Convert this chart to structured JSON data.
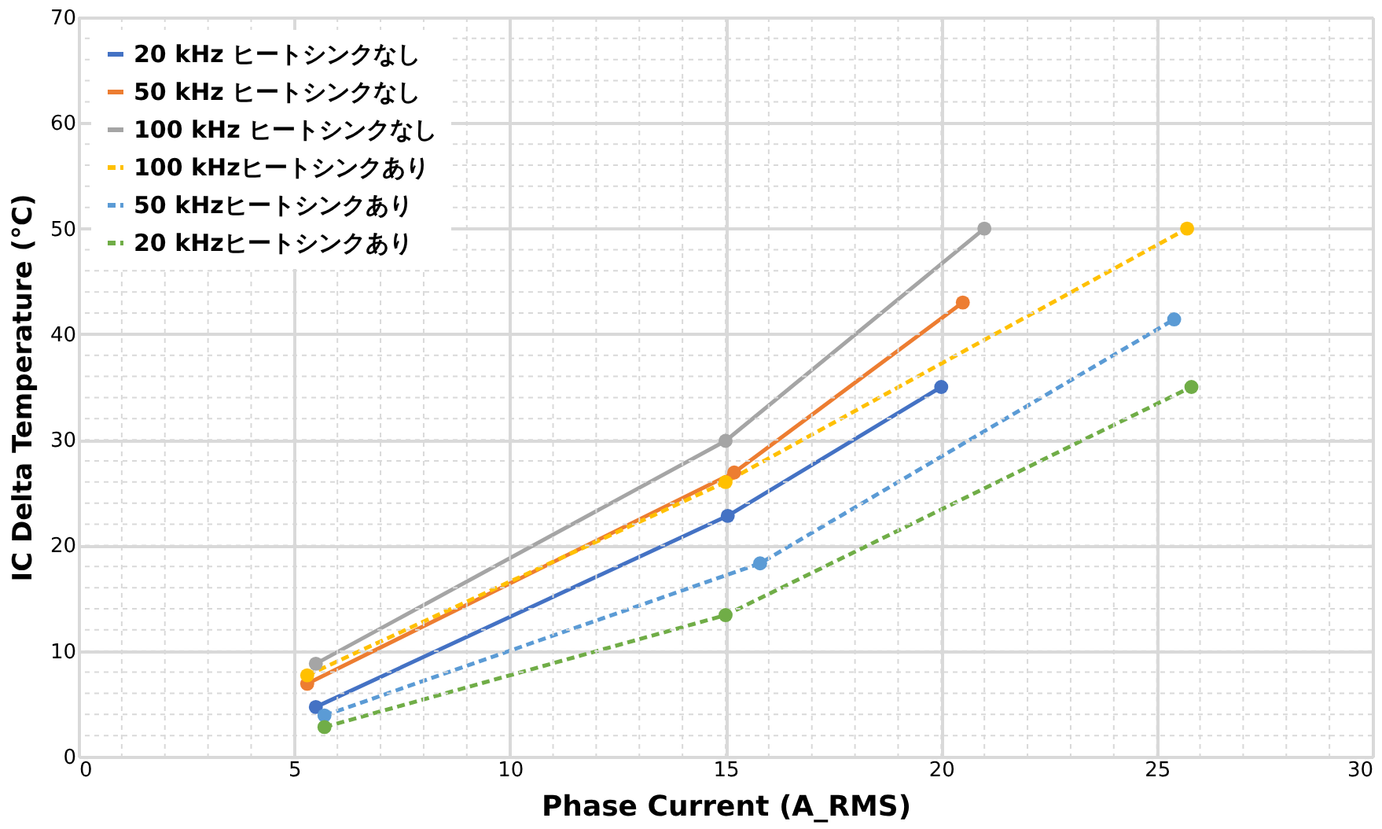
{
  "chart_data": {
    "type": "line",
    "xlabel": "Phase Current (A_RMS)",
    "ylabel": "IC Delta Temperature (°C)",
    "xlim": [
      0,
      30
    ],
    "ylim": [
      0,
      70
    ],
    "xticks": [
      0,
      5,
      10,
      15,
      20,
      25,
      30
    ],
    "yticks": [
      0,
      10,
      20,
      30,
      40,
      50,
      60,
      70
    ],
    "grid": true,
    "legend": "top left",
    "marker": "circle",
    "series": [
      {
        "name": "20 kHz ヒートシンクなし",
        "color": "#4472c4",
        "line_style": "solid",
        "x": [
          5.5,
          15.05,
          20
        ],
        "values": [
          4.7,
          22.8,
          35
        ]
      },
      {
        "name": "50 kHz ヒートシンクなし",
        "color": "#ed7d31",
        "line_style": "solid",
        "x": [
          5.3,
          15.2,
          20.5
        ],
        "values": [
          6.9,
          26.9,
          43
        ]
      },
      {
        "name": "100 kHz ヒートシンクなし",
        "color": "#a5a5a5",
        "line_style": "solid",
        "x": [
          5.5,
          15,
          21
        ],
        "values": [
          8.8,
          29.9,
          50
        ]
      },
      {
        "name": "100 kHzヒートシンクあり",
        "color": "#ffc000",
        "line_style": "dashed",
        "x": [
          5.3,
          15,
          25.7
        ],
        "values": [
          7.7,
          26,
          50
        ]
      },
      {
        "name": "50 kHzヒートシンクあり",
        "color": "#5b9bd5",
        "line_style": "dashed",
        "x": [
          5.7,
          15.8,
          25.4
        ],
        "values": [
          3.9,
          18.3,
          41.4
        ]
      },
      {
        "name": "20 kHzヒートシンクあり",
        "color": "#70ad47",
        "line_style": "dashed",
        "x": [
          5.7,
          15,
          25.8
        ],
        "values": [
          2.8,
          13.4,
          35
        ]
      }
    ]
  }
}
